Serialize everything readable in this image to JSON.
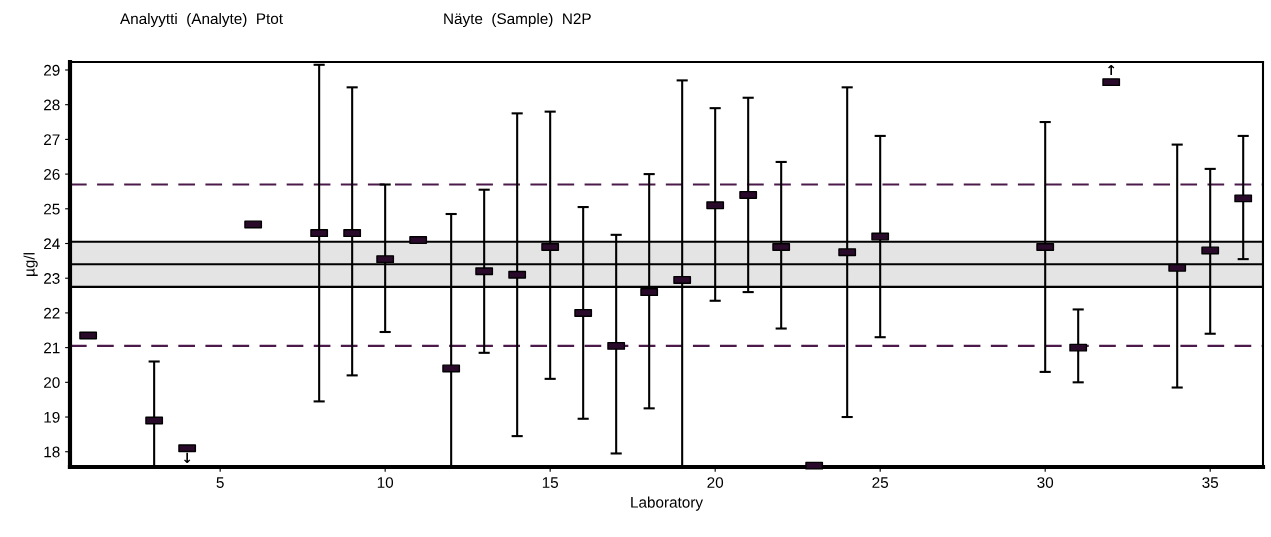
{
  "chart_data": {
    "type": "scatter",
    "title": "Analyytti  (Analyte)  Ptot",
    "subtitle": "Näyte  (Sample)  N2P",
    "xlabel": "Laboratory",
    "ylabel": "µg/l",
    "x": [
      1,
      3,
      4,
      6,
      8,
      9,
      10,
      11,
      12,
      13,
      14,
      15,
      16,
      17,
      18,
      19,
      20,
      21,
      22,
      23,
      24,
      25,
      30,
      31,
      32,
      34,
      35,
      36
    ],
    "series": [
      {
        "color": "#2a0a2a",
        "values": [
          21.35,
          18.9,
          18.1,
          24.55,
          24.3,
          24.3,
          23.55,
          24.1,
          20.4,
          23.2,
          23.1,
          23.9,
          22.0,
          21.05,
          22.6,
          22.95,
          25.1,
          25.4,
          23.9,
          17.6,
          23.75,
          24.2,
          23.9,
          21.0,
          28.65,
          23.3,
          23.8,
          25.3
        ],
        "errors": [
          null,
          [
            17.56,
            20.6
          ],
          null,
          null,
          [
            19.45,
            29.15
          ],
          [
            20.2,
            28.5
          ],
          [
            21.45,
            25.7
          ],
          null,
          [
            17.56,
            24.85
          ],
          [
            20.85,
            25.55
          ],
          [
            18.45,
            27.75
          ],
          [
            20.1,
            27.8
          ],
          [
            18.95,
            25.05
          ],
          [
            17.95,
            24.25
          ],
          [
            19.25,
            26.0
          ],
          [
            17.56,
            28.7
          ],
          [
            22.35,
            27.9
          ],
          [
            22.6,
            28.2
          ],
          [
            21.55,
            26.35
          ],
          null,
          [
            19.0,
            28.5
          ],
          [
            21.3,
            27.1
          ],
          [
            20.3,
            27.5
          ],
          [
            20.0,
            22.1
          ],
          null,
          [
            19.85,
            26.85
          ],
          [
            21.4,
            26.15
          ],
          [
            23.55,
            27.1
          ]
        ]
      }
    ],
    "annotations": [
      {
        "text": "↓",
        "x": 4,
        "y": 18.1
      },
      {
        "text": "↑",
        "x": 32,
        "y": 28.65
      }
    ],
    "bands": [
      {
        "axis": "y",
        "from": 22.75,
        "to": 24.05,
        "color": "#e4e4e4"
      }
    ],
    "ref_lines": [
      {
        "axis": "y",
        "value": 23.4,
        "color": "#000000",
        "line_style": "solid"
      },
      {
        "axis": "y",
        "value": 25.7,
        "color": "#4b1a4b",
        "line_style": "dashed"
      },
      {
        "axis": "y",
        "value": 21.05,
        "color": "#4b1a4b",
        "line_style": "dashed"
      }
    ],
    "xlim": [
      0.45,
      36.6
    ],
    "ylim": [
      17.56,
      29.23
    ],
    "xticks": [
      5,
      10,
      15,
      20,
      25,
      30,
      35
    ],
    "yticks": [
      18,
      19,
      20,
      21,
      22,
      23,
      24,
      25,
      26,
      27,
      28,
      29
    ],
    "marker": "square",
    "grid": false
  }
}
